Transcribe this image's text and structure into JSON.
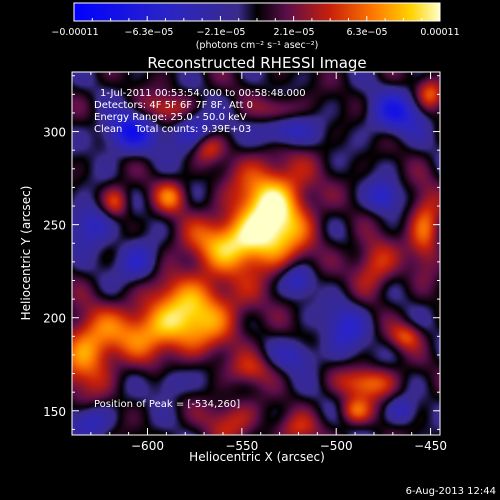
{
  "chart_data": {
    "type": "heatmap",
    "title": "Reconstructed RHESSI Image",
    "info_lines": [
      "1-Jul-2011 00:53:54.000 to 00:58:48.000",
      "Detectors: 4F 5F 6F 7F 8F, Att 0",
      "Energy Range: 25.0 - 50.0 keV",
      "Clean    Total counts: 9.39E+03"
    ],
    "peak_label": "Position of Peak = [-534,260]",
    "peak": [
      -534,
      260
    ],
    "xlabel": "Heliocentric X (arcsec)",
    "ylabel": "Heliocentric Y (arcsec)",
    "xlim": [
      -640,
      -445
    ],
    "ylim": [
      137,
      332
    ],
    "xticks": [
      -600,
      -550,
      -500,
      -450
    ],
    "xtick_labels": [
      "−600",
      "−550",
      "−500",
      "−450"
    ],
    "yticks": [
      150,
      200,
      250,
      300
    ],
    "colorbar": {
      "range": [
        -0.00011,
        0.00011
      ],
      "tick_labels": [
        "−0.00011",
        "−6.3e−05",
        "−2.1e−05",
        "2.1e−05",
        "6.3e−05",
        "0.00011"
      ],
      "units": "(photons cm⁻² s⁻¹ asec⁻²)"
    },
    "blobs": [
      {
        "x": -534,
        "y": 258,
        "sx": 14,
        "sy": 18,
        "amp": 1.0
      },
      {
        "x": -555,
        "y": 240,
        "sx": 18,
        "sy": 10,
        "amp": 0.7
      },
      {
        "x": -575,
        "y": 205,
        "sx": 18,
        "sy": 14,
        "amp": 0.72
      },
      {
        "x": -600,
        "y": 192,
        "sx": 20,
        "sy": 10,
        "amp": 0.55
      },
      {
        "x": -632,
        "y": 180,
        "sx": 10,
        "sy": 14,
        "amp": 0.65
      },
      {
        "x": -588,
        "y": 265,
        "sx": 6,
        "sy": 6,
        "amp": 0.5
      },
      {
        "x": -617,
        "y": 262,
        "sx": 5,
        "sy": 6,
        "amp": 0.5
      },
      {
        "x": -568,
        "y": 292,
        "sx": 6,
        "sy": 6,
        "amp": 0.5
      },
      {
        "x": -590,
        "y": 312,
        "sx": 10,
        "sy": 6,
        "amp": 0.45
      },
      {
        "x": -530,
        "y": 312,
        "sx": 8,
        "sy": 5,
        "amp": 0.35
      },
      {
        "x": -480,
        "y": 228,
        "sx": 8,
        "sy": 10,
        "amp": 0.5
      },
      {
        "x": -453,
        "y": 248,
        "sx": 6,
        "sy": 14,
        "amp": 0.6
      },
      {
        "x": -450,
        "y": 320,
        "sx": 5,
        "sy": 6,
        "amp": 0.5
      },
      {
        "x": -483,
        "y": 165,
        "sx": 10,
        "sy": 6,
        "amp": 0.6
      },
      {
        "x": -490,
        "y": 150,
        "sx": 6,
        "sy": 5,
        "amp": 0.5
      },
      {
        "x": -463,
        "y": 190,
        "sx": 6,
        "sy": 5,
        "amp": 0.45
      },
      {
        "x": -520,
        "y": 140,
        "sx": 8,
        "sy": 6,
        "amp": 0.35
      },
      {
        "x": -555,
        "y": 145,
        "sx": 10,
        "sy": 8,
        "amp": 0.4
      },
      {
        "x": -545,
        "y": 172,
        "sx": 8,
        "sy": 6,
        "amp": 0.35
      },
      {
        "x": -610,
        "y": 300,
        "sx": 10,
        "sy": 8,
        "amp": -0.7
      },
      {
        "x": -575,
        "y": 300,
        "sx": 10,
        "sy": 8,
        "amp": -0.5
      },
      {
        "x": -528,
        "y": 300,
        "sx": 10,
        "sy": 6,
        "amp": -0.55
      },
      {
        "x": -468,
        "y": 310,
        "sx": 10,
        "sy": 8,
        "amp": -0.6
      },
      {
        "x": -520,
        "y": 220,
        "sx": 6,
        "sy": 6,
        "amp": -0.45
      },
      {
        "x": -605,
        "y": 230,
        "sx": 8,
        "sy": 8,
        "amp": -0.5
      },
      {
        "x": -630,
        "y": 250,
        "sx": 8,
        "sy": 8,
        "amp": -0.5
      },
      {
        "x": -495,
        "y": 195,
        "sx": 8,
        "sy": 10,
        "amp": -0.45
      },
      {
        "x": -475,
        "y": 265,
        "sx": 6,
        "sy": 6,
        "amp": -0.5
      },
      {
        "x": -630,
        "y": 145,
        "sx": 8,
        "sy": 6,
        "amp": -0.4
      },
      {
        "x": -588,
        "y": 165,
        "sx": 6,
        "sy": 6,
        "amp": -0.35
      },
      {
        "x": -520,
        "y": 180,
        "sx": 8,
        "sy": 6,
        "amp": -0.35
      },
      {
        "x": -465,
        "y": 150,
        "sx": 5,
        "sy": 5,
        "amp": -0.35
      }
    ]
  },
  "footer": {
    "timestamp": "6-Aug-2013 12:44"
  }
}
